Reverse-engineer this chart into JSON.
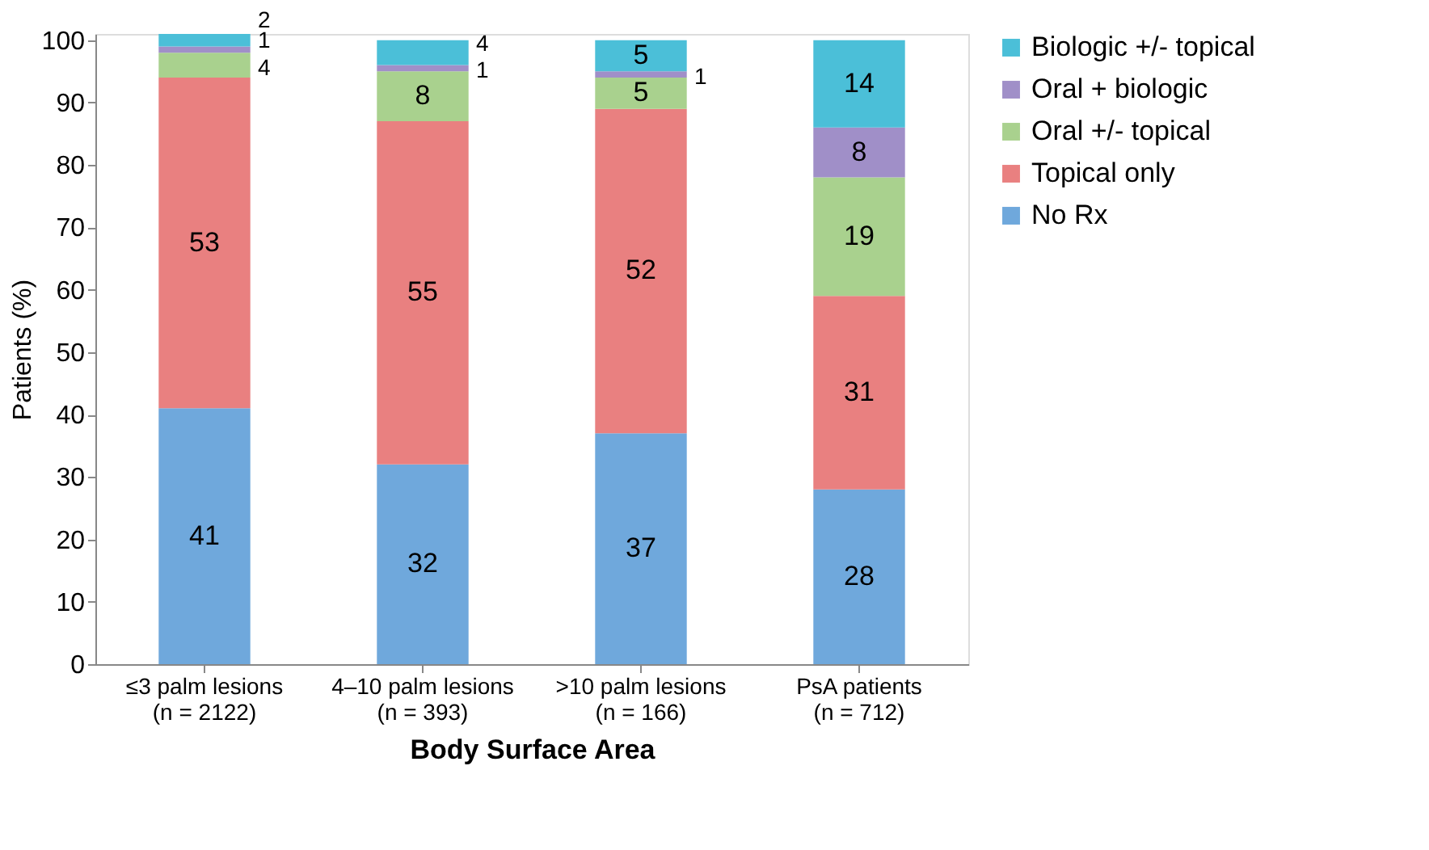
{
  "chart_data": {
    "type": "bar",
    "stacked": true,
    "data_labels": true,
    "xlabel": "Body Surface Area",
    "ylabel": "Patients (%)",
    "categories": [
      "≤3 palm lesions\n(n = 2122)",
      "4–10 palm lesions\n(n = 393)",
      ">10 palm lesions\n(n = 166)",
      "PsA patients\n(n = 712)"
    ],
    "series": [
      {
        "name": "No Rx",
        "color": "#6fa8dc",
        "values": [
          41,
          32,
          37,
          28
        ]
      },
      {
        "name": "Topical only",
        "color": "#e98080",
        "values": [
          53,
          55,
          52,
          31
        ]
      },
      {
        "name": "Oral +/- topical",
        "color": "#a9d18e",
        "values": [
          4,
          8,
          5,
          19
        ]
      },
      {
        "name": "Oral + biologic",
        "color": "#a08fc8",
        "values": [
          1,
          1,
          1,
          8
        ]
      },
      {
        "name": "Biologic +/- topical",
        "color": "#4bbfd8",
        "values": [
          2,
          4,
          5,
          14
        ]
      }
    ],
    "ylim": [
      0,
      101
    ],
    "yticks": [
      0,
      10,
      20,
      30,
      40,
      50,
      60,
      70,
      80,
      90,
      100
    ],
    "grid": false,
    "legend": "right"
  }
}
